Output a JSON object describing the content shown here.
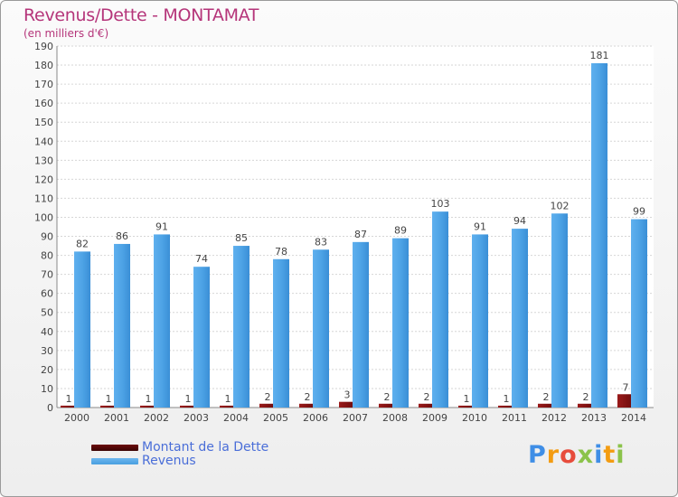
{
  "header": {
    "title": "Revenus/Dette - MONTAMAT",
    "subtitle": "(en milliers d'€)"
  },
  "chart_data": {
    "type": "bar",
    "title": "Revenus/Dette - MONTAMAT",
    "ylabel": "(en milliers d'€)",
    "xlabel": "",
    "categories": [
      "2000",
      "2001",
      "2002",
      "2003",
      "2004",
      "2005",
      "2006",
      "2007",
      "2008",
      "2009",
      "2010",
      "2011",
      "2012",
      "2013",
      "2014"
    ],
    "series": [
      {
        "name": "Montant de la Dette",
        "color": "#7a1010",
        "values": [
          1,
          1,
          1,
          1,
          1,
          2,
          2,
          3,
          2,
          2,
          1,
          1,
          2,
          2,
          7
        ]
      },
      {
        "name": "Revenus",
        "color": "#4a9fe0",
        "values": [
          82,
          86,
          91,
          74,
          85,
          78,
          83,
          87,
          89,
          103,
          91,
          94,
          102,
          181,
          99
        ]
      }
    ],
    "ylim": [
      0,
      190
    ],
    "yticks": [
      0,
      10,
      20,
      30,
      40,
      50,
      60,
      70,
      80,
      90,
      100,
      110,
      120,
      130,
      140,
      150,
      160,
      170,
      180,
      190
    ],
    "grid": true,
    "legend_position": "bottom-left"
  },
  "legend": {
    "items": [
      {
        "label": "Montant de la Dette",
        "color": "#6b0b0b"
      },
      {
        "label": "Revenus",
        "color": "#4a9fe0"
      }
    ]
  },
  "logo": {
    "letters": [
      "P",
      "r",
      "o",
      "x",
      "i",
      "t",
      "i"
    ],
    "colors": [
      "#3f8ee6",
      "#f39c12",
      "#e74c3c",
      "#8bc34a",
      "#3f8ee6",
      "#f39c12",
      "#8bc34a"
    ]
  }
}
